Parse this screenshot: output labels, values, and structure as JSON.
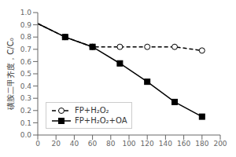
{
  "chart_data": {
    "type": "line",
    "x": [
      0,
      30,
      60,
      90,
      120,
      150,
      180
    ],
    "series": [
      {
        "color": "black",
        "line_style": "dashed",
        "marker": "none",
        "values": [
          0.91,
          0.8,
          null,
          null,
          null,
          null,
          null
        ]
      },
      {
        "color": "black",
        "line_style": "solid",
        "marker": "none",
        "values": [
          0.91,
          0.8,
          null,
          null,
          null,
          null,
          null
        ]
      },
      {
        "name": "FP+H₂O₂",
        "color": "black",
        "line_style": "dashed",
        "marker": "circle-open",
        "values": [
          null,
          0.8,
          0.72,
          0.72,
          0.72,
          0.72,
          0.69
        ]
      },
      {
        "name": "FP+H₂O₂+OA",
        "color": "black",
        "line_style": "solid",
        "marker": "square",
        "values": [
          null,
          0.8,
          0.72,
          0.585,
          0.435,
          0.27,
          0.15
        ]
      }
    ],
    "y_label": "磺胺二甲齐度，C/C₀",
    "xlim": [
      0,
      200
    ],
    "xticks": [
      0,
      20,
      40,
      60,
      80,
      100,
      120,
      140,
      160,
      180,
      200
    ],
    "ylim": [
      0,
      1.0
    ],
    "yticks": [
      {
        "value": 0,
        "label": "0.0"
      },
      0.1,
      0.2,
      0.3,
      0.4,
      0.5,
      0.6,
      0.7,
      0.8,
      0.9,
      {
        "value": 1.0,
        "label": "1.0"
      }
    ],
    "grid": false,
    "legend": "lower left"
  }
}
